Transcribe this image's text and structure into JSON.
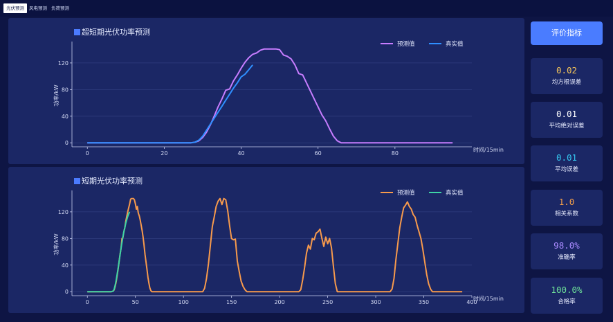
{
  "tabs": [
    {
      "label": "光伏预测",
      "active": true
    },
    {
      "label": "风电预测",
      "active": false
    },
    {
      "label": "负荷预测",
      "active": false
    }
  ],
  "sidebar": {
    "button_label": "评价指标",
    "metrics": [
      {
        "value": "0.02",
        "label": "均方根误差",
        "color": "#f3c35a"
      },
      {
        "value": "0.01",
        "label": "平均绝对误差",
        "color": "#ffffff"
      },
      {
        "value": "0.01",
        "label": "平均误差",
        "color": "#35c7f0"
      },
      {
        "value": "1.0",
        "label": "相关系数",
        "color": "#f5a04a"
      },
      {
        "value": "98.0%",
        "label": "准确率",
        "color": "#a98bff"
      },
      {
        "value": "100.0%",
        "label": "合格率",
        "color": "#6fe39a"
      }
    ]
  },
  "chart_data": [
    {
      "type": "line",
      "title": "超短期光伏功率预测",
      "xlabel": "时间/15min",
      "ylabel": "功率/kW",
      "xlim": [
        -4,
        100
      ],
      "ylim": [
        -6,
        148
      ],
      "xticks": [
        0,
        20,
        40,
        60,
        80
      ],
      "yticks": [
        0,
        40,
        80,
        120
      ],
      "grid": "horizontal",
      "legend": "top-right",
      "series": [
        {
          "name": "预测值",
          "color": "#c77dff",
          "x": [
            0,
            10,
            20,
            27,
            28,
            29,
            30,
            31,
            32,
            33,
            34,
            35,
            36,
            37,
            38,
            39,
            40,
            41,
            42,
            43,
            44,
            45,
            46,
            47,
            48,
            49,
            50,
            51,
            52,
            53,
            54,
            55,
            56,
            57,
            58,
            59,
            60,
            61,
            62,
            63,
            64,
            65,
            66,
            67,
            68,
            69,
            70,
            75,
            80,
            85,
            90,
            95
          ],
          "y": [
            0,
            0,
            0,
            0,
            1,
            3,
            8,
            16,
            27,
            40,
            54,
            66,
            79,
            81,
            93,
            102,
            112,
            121,
            128,
            133,
            135,
            139,
            141,
            141,
            141,
            141,
            140,
            132,
            130,
            126,
            117,
            104,
            102,
            90,
            78,
            66,
            54,
            42,
            33,
            21,
            10,
            3,
            0,
            0,
            0,
            0,
            0,
            0,
            0,
            0,
            0,
            0
          ]
        },
        {
          "name": "真实值",
          "color": "#2f8fff",
          "x": [
            0,
            10,
            20,
            27,
            28,
            29,
            30,
            31,
            32,
            33,
            34,
            35,
            36,
            37,
            38,
            39,
            40,
            41,
            42,
            43
          ],
          "y": [
            0,
            0,
            0,
            0,
            1,
            4,
            10,
            19,
            28,
            37,
            46,
            55,
            64,
            73,
            82,
            90,
            99,
            103,
            110,
            117
          ]
        }
      ]
    },
    {
      "type": "line",
      "title": "短期光伏功率预测",
      "xlabel": "时间/15min",
      "ylabel": "功率/kW",
      "xlim": [
        -16,
        400
      ],
      "ylim": [
        -6,
        148
      ],
      "xticks": [
        0,
        50,
        100,
        150,
        200,
        250,
        300,
        350,
        400
      ],
      "yticks": [
        0,
        40,
        80,
        120
      ],
      "grid": "horizontal",
      "legend": "top-right",
      "series": [
        {
          "name": "预测值",
          "color": "#f79a4c",
          "x": [
            0,
            25,
            27,
            28,
            29,
            30,
            31,
            32,
            33,
            34,
            35,
            36,
            37,
            38,
            39,
            40,
            41,
            42,
            43,
            44,
            45,
            46,
            47,
            48,
            49,
            50,
            51,
            52,
            53,
            54,
            55,
            56,
            57,
            58,
            59,
            60,
            61,
            62,
            63,
            64,
            65,
            66,
            67,
            68,
            69,
            70,
            120,
            122,
            124,
            126,
            128,
            130,
            132,
            134,
            136,
            138,
            140,
            142,
            144,
            146,
            148,
            150,
            152,
            154,
            156,
            158,
            160,
            162,
            164,
            166,
            168,
            170,
            220,
            222,
            224,
            226,
            228,
            230,
            232,
            234,
            236,
            238,
            240,
            242,
            244,
            246,
            248,
            250,
            252,
            254,
            256,
            258,
            260,
            300,
            315,
            317,
            319,
            321,
            323,
            325,
            327,
            329,
            331,
            333,
            335,
            337,
            339,
            341,
            343,
            345,
            347,
            349,
            351,
            353,
            355,
            357,
            359,
            361,
            363,
            390
          ],
          "y": [
            0,
            0,
            1,
            3,
            8,
            15,
            24,
            34,
            45,
            56,
            65,
            80,
            81,
            90,
            96,
            106,
            113,
            120,
            126,
            132,
            139,
            140,
            140,
            140,
            138,
            132,
            124,
            128,
            118,
            114,
            108,
            100,
            92,
            82,
            70,
            56,
            45,
            34,
            22,
            13,
            6,
            2,
            0,
            0,
            0,
            0,
            0,
            5,
            20,
            42,
            70,
            98,
            112,
            128,
            136,
            140,
            131,
            140,
            138,
            122,
            99,
            80,
            78,
            79,
            46,
            30,
            16,
            8,
            3,
            0,
            0,
            0,
            0,
            3,
            18,
            36,
            58,
            70,
            64,
            80,
            78,
            88,
            90,
            94,
            80,
            68,
            82,
            72,
            80,
            66,
            38,
            12,
            0,
            0,
            0,
            4,
            20,
            48,
            72,
            96,
            112,
            126,
            130,
            135,
            128,
            124,
            116,
            112,
            100,
            90,
            80,
            64,
            45,
            26,
            12,
            4,
            0,
            0,
            0,
            0
          ]
        },
        {
          "name": "真实值",
          "color": "#3ed3a5",
          "x": [
            0,
            25,
            27,
            28,
            29,
            30,
            31,
            32,
            33,
            34,
            35,
            36,
            37,
            38,
            39,
            40,
            41,
            42,
            43,
            44
          ],
          "y": [
            0,
            0,
            1,
            4,
            10,
            17,
            26,
            35,
            45,
            55,
            65,
            74,
            82,
            90,
            96,
            103,
            108,
            113,
            117,
            120
          ]
        }
      ]
    }
  ]
}
